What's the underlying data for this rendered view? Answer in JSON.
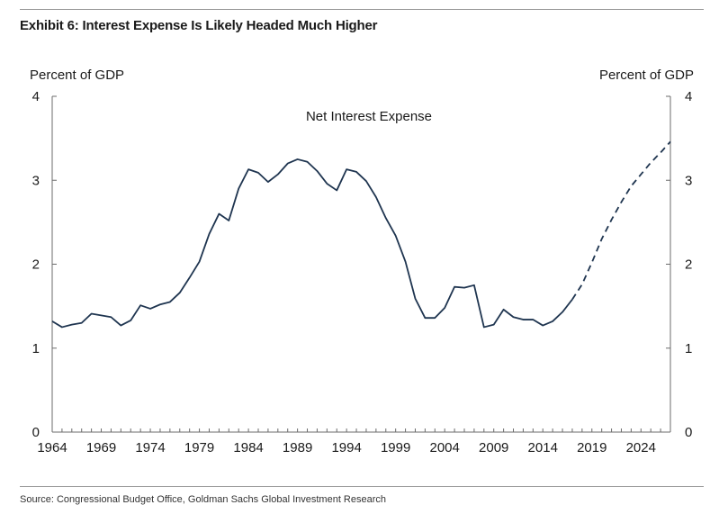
{
  "header": {
    "title": "Exhibit 6: Interest Expense Is Likely Headed Much Higher"
  },
  "footer": {
    "source": "Source: Congressional Budget Office, Goldman Sachs Global Investment Research"
  },
  "colors": {
    "line": "#1f3550",
    "axis": "#6b6b6b"
  },
  "chart_data": {
    "type": "line",
    "xlabel": "",
    "ylabel": "Percent of GDP",
    "ylabel_right": "Percent of GDP",
    "annotation": "Net Interest Expense",
    "xlim": [
      1964,
      2027
    ],
    "ylim": [
      0,
      4
    ],
    "x_ticks": [
      "1964",
      "1969",
      "1974",
      "1979",
      "1984",
      "1989",
      "1994",
      "1999",
      "2004",
      "2009",
      "2014",
      "2019",
      "2024"
    ],
    "y_ticks": [
      "0",
      "1",
      "2",
      "3",
      "4"
    ],
    "grid": false,
    "series": [
      {
        "style": "solid",
        "x": [
          1964,
          1965,
          1966,
          1967,
          1968,
          1969,
          1970,
          1971,
          1972,
          1973,
          1974,
          1975,
          1976,
          1977,
          1978,
          1979,
          1980,
          1981,
          1982,
          1983,
          1984,
          1985,
          1986,
          1987,
          1988,
          1989,
          1990,
          1991,
          1992,
          1993,
          1994,
          1995,
          1996,
          1997,
          1998,
          1999,
          2000,
          2001,
          2002,
          2003,
          2004,
          2005,
          2006,
          2007,
          2008,
          2009,
          2010,
          2011,
          2012,
          2013,
          2014,
          2015,
          2016,
          2017
        ],
        "y": [
          1.32,
          1.25,
          1.28,
          1.3,
          1.41,
          1.39,
          1.37,
          1.27,
          1.33,
          1.51,
          1.47,
          1.52,
          1.55,
          1.66,
          1.84,
          2.03,
          2.36,
          2.6,
          2.52,
          2.9,
          3.13,
          3.09,
          2.98,
          3.07,
          3.2,
          3.25,
          3.22,
          3.11,
          2.96,
          2.88,
          3.13,
          3.1,
          2.99,
          2.8,
          2.55,
          2.34,
          2.03,
          1.59,
          1.36,
          1.36,
          1.48,
          1.73,
          1.72,
          1.75,
          1.25,
          1.28,
          1.46,
          1.37,
          1.34,
          1.34,
          1.27,
          1.32,
          1.43,
          1.58
        ]
      },
      {
        "style": "dashed",
        "x": [
          2017,
          2018,
          2019,
          2020,
          2021,
          2022,
          2023,
          2024,
          2025,
          2026,
          2027
        ],
        "y": [
          1.58,
          1.76,
          2.02,
          2.3,
          2.53,
          2.74,
          2.93,
          3.07,
          3.21,
          3.33,
          3.46
        ]
      }
    ]
  }
}
